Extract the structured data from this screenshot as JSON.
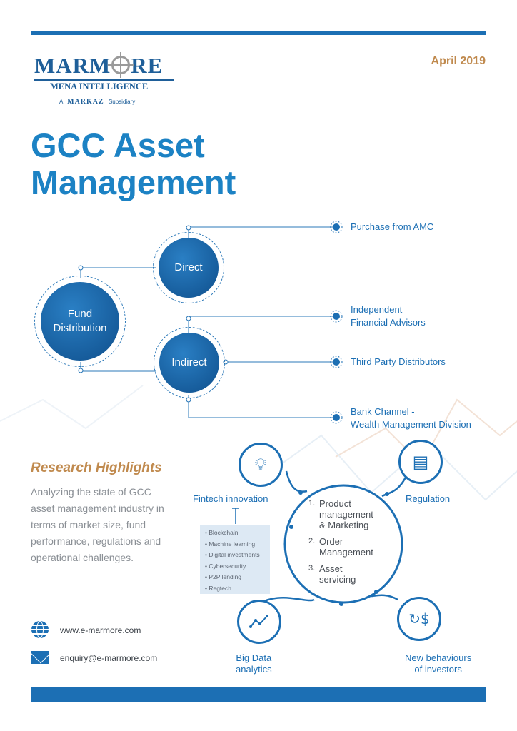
{
  "header": {
    "logo_main_left": "MARM",
    "logo_main_right": "RE",
    "logo_sub": "MENA INTELLIGENCE",
    "logo_a": "A",
    "logo_markaz": "MARKAZ",
    "logo_subsidiary": "Subsidiary",
    "date": "April 2019"
  },
  "title": {
    "line1": "GCC Asset",
    "line2": "Management"
  },
  "diagram": {
    "root": [
      "Fund",
      "Distribution"
    ],
    "direct": "Direct",
    "indirect": "Indirect",
    "channels": {
      "amc": "Purchase from AMC",
      "ifa_1": "Independent",
      "ifa_2": "Financial Advisors",
      "third_party": "Third Party Distributors",
      "bank_1": "Bank Channel -",
      "bank_2": "Wealth Management Division"
    }
  },
  "research": {
    "title": "Research Highlights",
    "text": "Analyzing the state of GCC asset management industry in terms of market size, fund performance, regulations and operational challenges."
  },
  "highlights": {
    "fintech": "Fintech innovation",
    "regulation": "Regulation",
    "bigdata_1": "Big Data",
    "bigdata_2": "analytics",
    "behaviours_1": "New behaviours",
    "behaviours_2": "of investors",
    "fintech_items": [
      "Blockchain",
      "Machine learning",
      "Digital investments",
      "Cybersecurity",
      "P2P lending",
      "Regtech"
    ],
    "center_items": [
      {
        "num": "1.",
        "text_1": "Product",
        "text_2": "management",
        "text_3": "& Marketing"
      },
      {
        "num": "2.",
        "text_1": "Order",
        "text_2": "Management"
      },
      {
        "num": "3.",
        "text_1": "Asset",
        "text_2": "servicing"
      }
    ],
    "icons": [
      "lightbulb-icon",
      "document-icon",
      "trend-chart-icon",
      "currency-cycle-icon"
    ]
  },
  "contact": {
    "website": "www.e-marmore.com",
    "email": "enquiry@e-marmore.com"
  },
  "colors": {
    "brand_blue": "#1c6fb4",
    "accent_gold": "#c08a4e",
    "title_blue": "#1c82c4"
  }
}
